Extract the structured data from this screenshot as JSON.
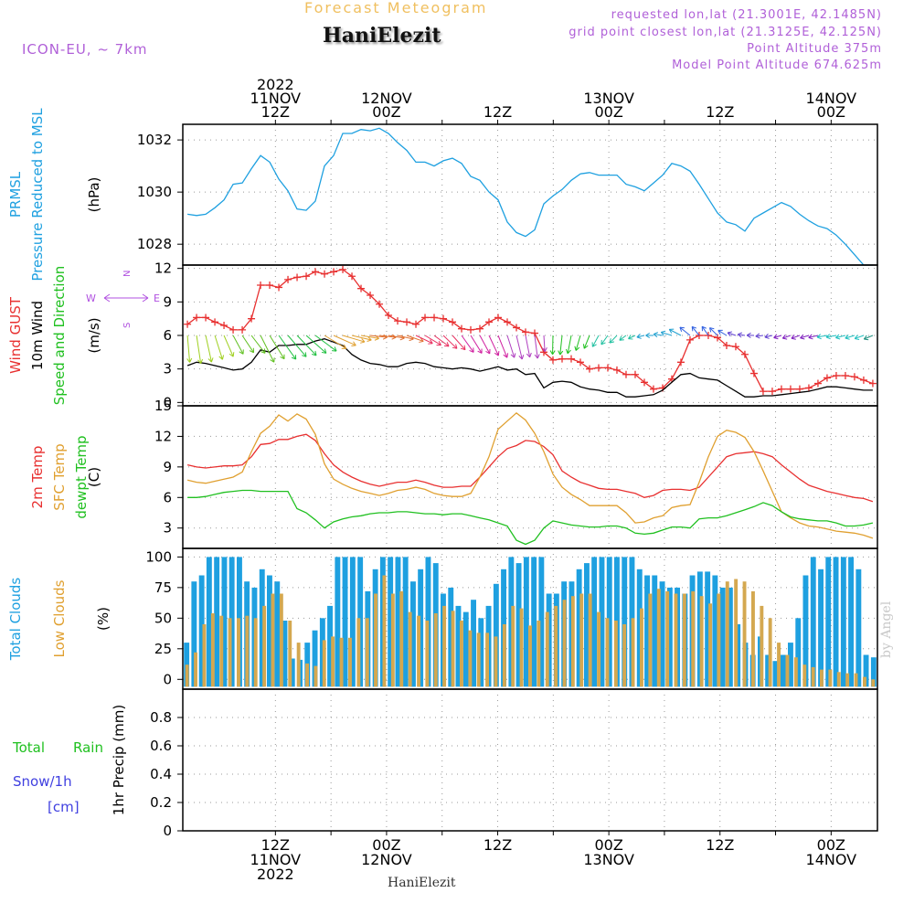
{
  "header": {
    "forecast_title": "Forecast Meteogram",
    "location": "HaniElezit",
    "model": "ICON-EU, ~ 7km",
    "requested": "requested lon,lat (21.3001E, 42.1485N)",
    "grid_point": "grid point closest lon,lat (21.3125E, 42.125N)",
    "point_altitude": "Point Altitude 375m",
    "model_altitude": "Model Point Altitude 674.625m",
    "footer_location": "HaniElezit",
    "watermark": "by Angel"
  },
  "time_axis": {
    "top_labels": [
      {
        "hour": 24,
        "lines": [
          "2022",
          "11NOV",
          "12Z"
        ]
      },
      {
        "hour": 36,
        "lines": [
          "12NOV",
          "00Z"
        ]
      },
      {
        "hour": 48,
        "lines": [
          "12Z"
        ]
      },
      {
        "hour": 60,
        "lines": [
          "13NOV",
          "00Z"
        ]
      },
      {
        "hour": 72,
        "lines": [
          "12Z"
        ]
      },
      {
        "hour": 84,
        "lines": [
          "14NOV",
          "00Z"
        ]
      }
    ],
    "bottom_labels": [
      {
        "hour": 24,
        "lines": [
          "12Z",
          "11NOV",
          "2022"
        ]
      },
      {
        "hour": 36,
        "lines": [
          "00Z",
          "12NOV"
        ]
      },
      {
        "hour": 48,
        "lines": [
          "12Z"
        ]
      },
      {
        "hour": 60,
        "lines": [
          "00Z",
          "13NOV"
        ]
      },
      {
        "hour": 72,
        "lines": [
          "12Z"
        ]
      },
      {
        "hour": 84,
        "lines": [
          "00Z",
          "14NOV"
        ]
      }
    ]
  },
  "chart_data": [
    {
      "type": "line",
      "id": "pressure",
      "side_labels": [
        {
          "text": "PRMSL",
          "color": "#1ea0e0"
        },
        {
          "text": "Pressure Reduced to MSL",
          "color": "#1ea0e0"
        }
      ],
      "unit": "(hPa)",
      "ylim": [
        1027.2,
        1032.6
      ],
      "yticks": [
        1028,
        1030,
        1032
      ],
      "grid": true,
      "series": [
        {
          "color": "#1ea0e0",
          "values": [
            1029.15,
            1029.1,
            1029.15,
            1029.4,
            1029.7,
            1030.3,
            1030.35,
            1030.9,
            1031.4,
            1031.15,
            1030.5,
            1030.05,
            1029.35,
            1029.3,
            1029.65,
            1031.0,
            1031.4,
            1032.25,
            1032.25,
            1032.4,
            1032.35,
            1032.45,
            1032.25,
            1031.9,
            1031.6,
            1031.15,
            1031.15,
            1031.0,
            1031.2,
            1031.3,
            1031.1,
            1030.6,
            1030.45,
            1030.0,
            1029.7,
            1028.85,
            1028.45,
            1028.3,
            1028.55,
            1029.55,
            1029.85,
            1030.1,
            1030.45,
            1030.7,
            1030.75,
            1030.65,
            1030.65,
            1030.65,
            1030.3,
            1030.2,
            1030.05,
            1030.35,
            1030.65,
            1031.1,
            1031.0,
            1030.8,
            1030.3,
            1029.75,
            1029.2,
            1028.85,
            1028.75,
            1028.5,
            1029.0,
            1029.2,
            1029.4,
            1029.6,
            1029.45,
            1029.15,
            1028.9,
            1028.7,
            1028.6,
            1028.35,
            1028.0,
            1027.6,
            1027.2,
            1027.2
          ]
        }
      ]
    },
    {
      "type": "line",
      "id": "wind",
      "side_labels": [
        {
          "text": "Wind GUST",
          "color": "#e83030"
        },
        {
          "text": "10m Wind",
          "color": "#000000"
        },
        {
          "text": "Speed and Direction",
          "color": "#20c020"
        }
      ],
      "unit": "(m/s)",
      "compass": {
        "north": "N",
        "west": "W",
        "east": "E",
        "south": "S",
        "color": "#b050e0"
      },
      "ylim": [
        -0.3,
        12.3
      ],
      "yticks": [
        0,
        3,
        6,
        9,
        12
      ],
      "grid": true,
      "series": [
        {
          "name": "Wind GUST",
          "color": "#e83030",
          "values": [
            7.0,
            7.6,
            7.6,
            7.2,
            6.9,
            6.5,
            6.5,
            7.5,
            10.5,
            10.5,
            10.3,
            11.0,
            11.2,
            11.3,
            11.7,
            11.5,
            11.7,
            11.9,
            11.3,
            10.2,
            9.6,
            8.8,
            7.8,
            7.3,
            7.2,
            7.0,
            7.6,
            7.6,
            7.5,
            7.2,
            6.6,
            6.5,
            6.6,
            7.2,
            7.6,
            7.2,
            6.7,
            6.3,
            6.2,
            4.5,
            3.8,
            3.9,
            3.9,
            3.6,
            3.0,
            3.1,
            3.1,
            2.9,
            2.5,
            2.5,
            1.8,
            1.2,
            1.3,
            2.1,
            3.6,
            5.6,
            6.0,
            6.0,
            5.8,
            5.1,
            5.0,
            4.3,
            2.6,
            1.0,
            1.0,
            1.2,
            1.2,
            1.2,
            1.3,
            1.7,
            2.2,
            2.4,
            2.4,
            2.3,
            2.0,
            1.7
          ]
        },
        {
          "name": "10m Wind",
          "color": "#000000",
          "values": [
            3.3,
            3.6,
            3.5,
            3.3,
            3.1,
            2.9,
            3.0,
            3.6,
            4.7,
            4.5,
            5.1,
            5.1,
            5.2,
            5.2,
            5.5,
            5.7,
            5.4,
            5.1,
            4.3,
            3.8,
            3.5,
            3.4,
            3.2,
            3.2,
            3.5,
            3.6,
            3.5,
            3.2,
            3.1,
            3.0,
            3.1,
            3.0,
            2.8,
            3.0,
            3.2,
            2.9,
            3.0,
            2.5,
            2.6,
            1.3,
            1.8,
            1.9,
            1.8,
            1.4,
            1.2,
            1.1,
            0.9,
            0.9,
            0.5,
            0.5,
            0.6,
            0.7,
            1.1,
            1.8,
            2.5,
            2.6,
            2.2,
            2.1,
            2.0,
            1.5,
            1.0,
            0.5,
            0.5,
            0.6,
            0.6,
            0.7,
            0.8,
            0.9,
            1.0,
            1.2,
            1.4,
            1.4,
            1.3,
            1.2,
            1.1,
            1.1
          ]
        }
      ],
      "wind_direction_deg": [
        8,
        14,
        20,
        28,
        36,
        42,
        48,
        52,
        40,
        46,
        50,
        55,
        58,
        62,
        66,
        70,
        75,
        80,
        82,
        84,
        86,
        86,
        84,
        82,
        78,
        74,
        70,
        66,
        60,
        56,
        50,
        46,
        42,
        38,
        34,
        28,
        22,
        18,
        12,
        6,
        -2,
        -10,
        -18,
        -26,
        -34,
        -42,
        -50,
        -58,
        -66,
        -74,
        -82,
        -90,
        -100,
        -110,
        -122,
        -134,
        -146,
        -150,
        -140,
        -126,
        -112,
        -100,
        -92,
        -86,
        -82,
        -80,
        -78,
        -78,
        -80,
        -82,
        -84,
        -84,
        -82,
        -80,
        -78,
        -76
      ]
    },
    {
      "type": "line",
      "id": "temperature",
      "side_labels": [
        {
          "text": "2m Temp",
          "color": "#e83030"
        },
        {
          "text": "SFC Temp",
          "color": "#e0a030"
        },
        {
          "text": "dewpt Temp",
          "color": "#20c020"
        }
      ],
      "unit": "(C)",
      "ylim": [
        1.0,
        15.0
      ],
      "yticks": [
        3,
        6,
        9,
        12,
        15
      ],
      "grid": true,
      "series": [
        {
          "name": "2m Temp",
          "color": "#e83030",
          "values": [
            9.2,
            9.0,
            8.9,
            9.0,
            9.1,
            9.1,
            9.2,
            10.0,
            11.2,
            11.3,
            11.7,
            11.7,
            12.0,
            12.2,
            11.6,
            10.3,
            9.2,
            8.5,
            8.0,
            7.6,
            7.3,
            7.1,
            7.3,
            7.5,
            7.5,
            7.7,
            7.5,
            7.2,
            7.0,
            7.0,
            7.1,
            7.1,
            8.0,
            9.0,
            10.0,
            10.8,
            11.1,
            11.6,
            11.5,
            11.0,
            10.2,
            8.6,
            8.0,
            7.5,
            7.2,
            6.9,
            6.8,
            6.8,
            6.6,
            6.4,
            6.0,
            6.2,
            6.7,
            6.8,
            6.8,
            6.7,
            7.0,
            8.0,
            9.0,
            10.0,
            10.3,
            10.4,
            10.5,
            10.3,
            10.0,
            9.2,
            8.5,
            7.8,
            7.2,
            6.9,
            6.6,
            6.4,
            6.2,
            6.0,
            5.9,
            5.6
          ]
        },
        {
          "name": "SFC Temp",
          "color": "#e0a030",
          "values": [
            7.7,
            7.5,
            7.4,
            7.6,
            7.8,
            8.0,
            8.5,
            10.5,
            12.3,
            13.0,
            14.1,
            13.5,
            14.2,
            13.7,
            12.2,
            9.3,
            7.8,
            7.3,
            6.9,
            6.6,
            6.4,
            6.2,
            6.4,
            6.7,
            6.8,
            7.0,
            6.8,
            6.4,
            6.2,
            6.1,
            6.1,
            6.4,
            8.0,
            10.0,
            12.7,
            13.5,
            14.3,
            13.6,
            12.3,
            10.5,
            8.3,
            7.0,
            6.3,
            5.8,
            5.2,
            5.2,
            5.2,
            5.2,
            4.5,
            3.5,
            3.6,
            4.0,
            4.2,
            5.0,
            5.2,
            5.3,
            7.5,
            10.0,
            12.0,
            12.6,
            12.4,
            11.9,
            10.5,
            8.6,
            6.6,
            4.6,
            4.0,
            3.5,
            3.2,
            3.1,
            2.9,
            2.7,
            2.6,
            2.5,
            2.3,
            2.0
          ]
        },
        {
          "name": "dewpt Temp",
          "color": "#20c020",
          "values": [
            6.0,
            6.0,
            6.1,
            6.3,
            6.5,
            6.6,
            6.7,
            6.7,
            6.6,
            6.6,
            6.6,
            6.6,
            4.9,
            4.5,
            3.8,
            3.0,
            3.6,
            3.9,
            4.1,
            4.2,
            4.4,
            4.5,
            4.5,
            4.6,
            4.6,
            4.5,
            4.4,
            4.4,
            4.3,
            4.4,
            4.4,
            4.2,
            4.0,
            3.8,
            3.5,
            3.2,
            1.8,
            1.4,
            1.8,
            3.0,
            3.7,
            3.5,
            3.3,
            3.2,
            3.1,
            3.1,
            3.2,
            3.2,
            3.0,
            2.5,
            2.4,
            2.5,
            2.8,
            3.1,
            3.1,
            3.0,
            3.9,
            4.0,
            4.0,
            4.2,
            4.5,
            4.8,
            5.1,
            5.5,
            5.2,
            4.6,
            4.1,
            3.9,
            3.8,
            3.7,
            3.7,
            3.5,
            3.2,
            3.2,
            3.3,
            3.5
          ]
        }
      ]
    },
    {
      "type": "bar",
      "id": "clouds",
      "side_labels": [
        {
          "text": "Total Clouds",
          "color": "#1ea0e0"
        },
        {
          "text": "Low Clouds",
          "color": "#e0a030"
        }
      ],
      "unit": "(%)",
      "ylim": [
        -8,
        107
      ],
      "yticks": [
        0,
        25,
        50,
        75,
        100
      ],
      "grid": true,
      "series": [
        {
          "name": "Total Clouds",
          "color": "#1ea0e0",
          "values": [
            30,
            80,
            85,
            100,
            100,
            100,
            100,
            100,
            80,
            75,
            90,
            85,
            80,
            48,
            17,
            16,
            30,
            40,
            50,
            60,
            100,
            100,
            100,
            100,
            72,
            90,
            100,
            100,
            100,
            100,
            80,
            90,
            100,
            95,
            70,
            75,
            60,
            55,
            65,
            50,
            60,
            78,
            90,
            100,
            95,
            100,
            100,
            100,
            70,
            70,
            80,
            80,
            90,
            95,
            100,
            100,
            100,
            100,
            100,
            100,
            90,
            85,
            85,
            80,
            75,
            75,
            70,
            85,
            88,
            88,
            85,
            75,
            75,
            45,
            30,
            20,
            35,
            20,
            15,
            20,
            30,
            50,
            85,
            100,
            90,
            100,
            100,
            100,
            100,
            90,
            20,
            18
          ]
        },
        {
          "name": "Low Clouds",
          "color": "#d4a850",
          "values": [
            12,
            22,
            45,
            54,
            52,
            50,
            50,
            52,
            50,
            60,
            70,
            70,
            48,
            30,
            13,
            11,
            32,
            35,
            34,
            34,
            50,
            50,
            70,
            85,
            70,
            72,
            55,
            52,
            48,
            54,
            60,
            56,
            48,
            40,
            38,
            38,
            35,
            45,
            60,
            58,
            44,
            48,
            55,
            60,
            65,
            68,
            70,
            70,
            55,
            50,
            48,
            45,
            50,
            58,
            70,
            74,
            72,
            70,
            70,
            72,
            68,
            62,
            70,
            80,
            82,
            80,
            72,
            60,
            50,
            30,
            20,
            18,
            12,
            10,
            8,
            8,
            6,
            5,
            5,
            2,
            0
          ]
        }
      ]
    },
    {
      "type": "bar",
      "id": "precip",
      "side_labels": [
        {
          "text": "Total",
          "color": "#20c020"
        },
        {
          "text": "Rain",
          "color": "#20c020"
        },
        {
          "text": "Snow/1h",
          "color": "#4040e0"
        },
        {
          "text": "[cm]",
          "color": "#4040e0"
        }
      ],
      "unit": "1hr Precip (mm)",
      "ylim": [
        0,
        1.0
      ],
      "yticks": [
        0,
        0.2,
        0.4,
        0.6,
        0.8
      ],
      "grid": true,
      "series": [
        {
          "name": "Total",
          "color": "#20c020",
          "values": []
        }
      ]
    }
  ]
}
